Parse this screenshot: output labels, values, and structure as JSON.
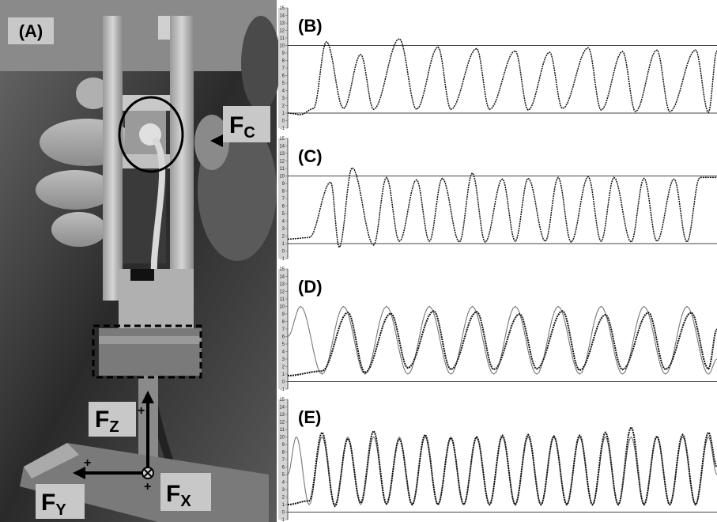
{
  "photo": {
    "panel_label": "(A)",
    "labels": {
      "fc": {
        "main": "F",
        "sub": "C"
      },
      "fz": {
        "main": "F",
        "sub": "Z"
      },
      "fy": {
        "main": "F",
        "sub": "Y"
      },
      "fx": {
        "main": "F",
        "sub": "X"
      }
    },
    "signs": {
      "fz": "+",
      "fy": "+",
      "fx": "+"
    }
  },
  "chart_data": [
    {
      "type": "line",
      "panel_label": "(B)",
      "ylim": [
        -1,
        15
      ],
      "yticks": [
        "15",
        "14",
        "13",
        "12",
        "11",
        "10",
        "9",
        "8",
        "7",
        "6",
        "5",
        "4",
        "3",
        "2",
        "1",
        "0",
        "-1"
      ],
      "reference_lines": [
        10,
        1
      ],
      "series": [
        {
          "style": "dotted",
          "x": [
            0,
            0.03,
            0.06,
            0.09,
            0.13,
            0.17,
            0.2,
            0.26,
            0.3,
            0.35,
            0.38,
            0.44,
            0.47,
            0.53,
            0.56,
            0.61,
            0.64,
            0.7,
            0.73,
            0.78,
            0.81,
            0.86,
            0.89,
            0.95,
            0.98,
            1.0
          ],
          "y": [
            1,
            0.8,
            1.6,
            10.5,
            1.6,
            8.8,
            1.5,
            10.9,
            1.5,
            9.8,
            1.5,
            9.6,
            1.5,
            9.3,
            1.4,
            9.1,
            1.6,
            9.7,
            1.4,
            9.2,
            1.2,
            9.4,
            1.2,
            9.4,
            1.1,
            9.3
          ]
        }
      ]
    },
    {
      "type": "line",
      "panel_label": "(C)",
      "ylim": [
        -1,
        15
      ],
      "yticks": [
        "15",
        "14",
        "13",
        "12",
        "11",
        "10",
        "9",
        "8",
        "7",
        "6",
        "5",
        "4",
        "3",
        "2",
        "1",
        "0",
        "-1"
      ],
      "reference_lines": [
        10,
        1
      ],
      "series": [
        {
          "style": "dotted",
          "x": [
            0,
            0.05,
            0.1,
            0.12,
            0.15,
            0.2,
            0.23,
            0.26,
            0.3,
            0.33,
            0.36,
            0.4,
            0.43,
            0.46,
            0.5,
            0.53,
            0.56,
            0.6,
            0.63,
            0.66,
            0.7,
            0.73,
            0.76,
            0.8,
            0.83,
            0.86,
            0.9,
            0.93,
            0.96,
            1.0
          ],
          "y": [
            1.6,
            1.8,
            9.2,
            0.5,
            11.1,
            0.8,
            9.8,
            1.3,
            9.5,
            1.3,
            9.7,
            1.2,
            10.4,
            1.2,
            9.6,
            1.3,
            9.7,
            1.3,
            9.8,
            1.2,
            9.9,
            1.3,
            9.8,
            1.2,
            9.7,
            1.3,
            9.6,
            1.2,
            9.8,
            9.8
          ]
        }
      ]
    },
    {
      "type": "line",
      "panel_label": "(D)",
      "ylim": [
        -1,
        15
      ],
      "yticks": [
        "15",
        "14",
        "13",
        "12",
        "11",
        "10",
        "9",
        "8",
        "7",
        "6",
        "5",
        "4",
        "3",
        "2",
        "1",
        "0",
        "-1"
      ],
      "reference_lines": [
        0
      ],
      "series": [
        {
          "style": "thin-gray",
          "x": [
            0,
            0.03,
            0.08,
            0.13,
            0.18,
            0.23,
            0.28,
            0.33,
            0.38,
            0.43,
            0.48,
            0.53,
            0.58,
            0.63,
            0.68,
            0.73,
            0.78,
            0.83,
            0.88,
            0.93,
            0.98,
            1.0
          ],
          "y": [
            6,
            10,
            1,
            10,
            1,
            10,
            1,
            10,
            1,
            10,
            1,
            10,
            1,
            10,
            1,
            10,
            1,
            10,
            1,
            10,
            1,
            3
          ]
        },
        {
          "style": "thick-dotted",
          "x": [
            0,
            0.08,
            0.14,
            0.18,
            0.24,
            0.28,
            0.34,
            0.38,
            0.44,
            0.48,
            0.54,
            0.58,
            0.64,
            0.68,
            0.74,
            0.78,
            0.84,
            0.88,
            0.94,
            0.98,
            1.0
          ],
          "y": [
            0.8,
            1.4,
            9.2,
            1.2,
            9.1,
            1.8,
            9.4,
            1.6,
            9.3,
            1.6,
            9.0,
            1.7,
            9.4,
            1.5,
            8.9,
            1.6,
            9.2,
            1.6,
            9.2,
            1.7,
            7
          ]
        }
      ]
    },
    {
      "type": "line",
      "panel_label": "(E)",
      "ylim": [
        -1,
        15
      ],
      "yticks": [
        "15",
        "14",
        "13",
        "12",
        "11",
        "10",
        "9",
        "8",
        "7",
        "6",
        "5",
        "4",
        "3",
        "2",
        "1",
        "0",
        "-1"
      ],
      "reference_lines": [
        0
      ],
      "series": [
        {
          "style": "thin-gray",
          "x": [
            0,
            0.02,
            0.05,
            0.08,
            0.11,
            0.14,
            0.17,
            0.2,
            0.23,
            0.26,
            0.29,
            0.32,
            0.35,
            0.38,
            0.41,
            0.44,
            0.47,
            0.5,
            0.53,
            0.56,
            0.59,
            0.62,
            0.65,
            0.68,
            0.71,
            0.74,
            0.77,
            0.8,
            0.83,
            0.86,
            0.89,
            0.92,
            0.95,
            0.98,
            1.0
          ],
          "y": [
            5,
            10,
            1,
            10,
            1,
            10,
            1,
            10,
            1,
            10,
            1,
            10,
            1,
            10,
            1,
            10,
            1,
            10,
            1,
            10,
            1,
            10,
            1,
            10,
            1,
            10,
            1,
            10,
            1,
            10,
            1,
            10,
            1,
            10,
            5
          ]
        },
        {
          "style": "thick-dotted",
          "x": [
            0,
            0.05,
            0.08,
            0.11,
            0.14,
            0.17,
            0.2,
            0.23,
            0.26,
            0.29,
            0.32,
            0.35,
            0.38,
            0.41,
            0.44,
            0.47,
            0.5,
            0.53,
            0.56,
            0.59,
            0.62,
            0.65,
            0.68,
            0.71,
            0.74,
            0.77,
            0.8,
            0.83,
            0.86,
            0.89,
            0.92,
            0.95,
            0.98,
            1.0
          ],
          "y": [
            1,
            1.5,
            10.6,
            0.8,
            9.8,
            1.2,
            10.8,
            1.1,
            9.7,
            1.0,
            10.3,
            1.0,
            9.9,
            1.0,
            10.0,
            1.0,
            10.2,
            1.0,
            10.3,
            1.0,
            10.1,
            1.0,
            10.2,
            1.0,
            10.6,
            1.0,
            11.3,
            1.0,
            10.1,
            1.0,
            10.3,
            1.0,
            10.6,
            6
          ]
        }
      ]
    }
  ]
}
